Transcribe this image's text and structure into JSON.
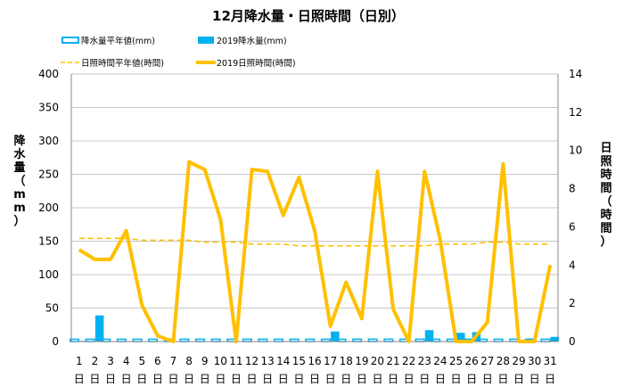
{
  "chart_data": {
    "type": "bar",
    "title": "12月降水量・日照時間（日別）",
    "categories": [
      "1",
      "2",
      "3",
      "4",
      "5",
      "6",
      "7",
      "8",
      "9",
      "10",
      "11",
      "12",
      "13",
      "14",
      "15",
      "16",
      "17",
      "18",
      "19",
      "20",
      "21",
      "22",
      "23",
      "24",
      "25",
      "26",
      "27",
      "28",
      "29",
      "30",
      "31"
    ],
    "category_suffix": "日",
    "ylabel": "降水量（mm）",
    "y2label": "日照時間（時間）",
    "ylim": [
      0,
      400
    ],
    "y2lim": [
      0,
      14
    ],
    "yticks": [
      0,
      50,
      100,
      150,
      200,
      250,
      300,
      350,
      400
    ],
    "y2ticks": [
      0,
      2,
      4,
      6,
      8,
      10,
      12,
      14
    ],
    "grid": true,
    "legend_position": "top",
    "series": [
      {
        "name": "降水量平年値(mm)",
        "type": "bar",
        "axis": "left",
        "color": "#00B0F0",
        "style": "outline",
        "values": [
          3.5,
          3.5,
          3.5,
          3.5,
          3.5,
          3.5,
          3.5,
          3.5,
          3.5,
          3.5,
          3.5,
          3.5,
          3.5,
          3.5,
          3.5,
          3.5,
          3.5,
          3.5,
          3.5,
          3.5,
          3.5,
          3.5,
          3.5,
          3.5,
          3.5,
          3.5,
          3.5,
          3.5,
          3.5,
          3.5,
          3.5
        ]
      },
      {
        "name": "2019降水量(mm)",
        "type": "bar",
        "axis": "left",
        "color": "#00B0F0",
        "style": "filled",
        "values": [
          1,
          39,
          0,
          0,
          0,
          0,
          0,
          0,
          0,
          0,
          0,
          0,
          0,
          0,
          0,
          0,
          15,
          0,
          0,
          0,
          0,
          0,
          17,
          0,
          13,
          14,
          0,
          0,
          0,
          0,
          7
        ]
      },
      {
        "name": "日照時間平年値(時間)",
        "type": "line",
        "axis": "right",
        "color": "#FFC000",
        "style": "dashed",
        "values": [
          5.4,
          5.4,
          5.4,
          5.4,
          5.3,
          5.3,
          5.3,
          5.3,
          5.2,
          5.2,
          5.2,
          5.1,
          5.1,
          5.1,
          5.0,
          5.0,
          5.0,
          5.0,
          5.0,
          5.0,
          5.0,
          5.0,
          5.0,
          5.1,
          5.1,
          5.1,
          5.2,
          5.2,
          5.1,
          5.1,
          5.1
        ]
      },
      {
        "name": "2019日照時間(時間)",
        "type": "line",
        "axis": "right",
        "color": "#FFC000",
        "style": "solid",
        "values": [
          4.8,
          4.3,
          4.3,
          5.8,
          1.9,
          0.3,
          0.0,
          9.4,
          9.0,
          6.4,
          0.0,
          9.0,
          8.9,
          6.6,
          8.6,
          5.8,
          0.8,
          3.1,
          1.2,
          8.9,
          1.7,
          0.0,
          8.9,
          5.3,
          0.0,
          0.0,
          1.0,
          9.3,
          0.0,
          0.0,
          4.0
        ]
      }
    ]
  }
}
